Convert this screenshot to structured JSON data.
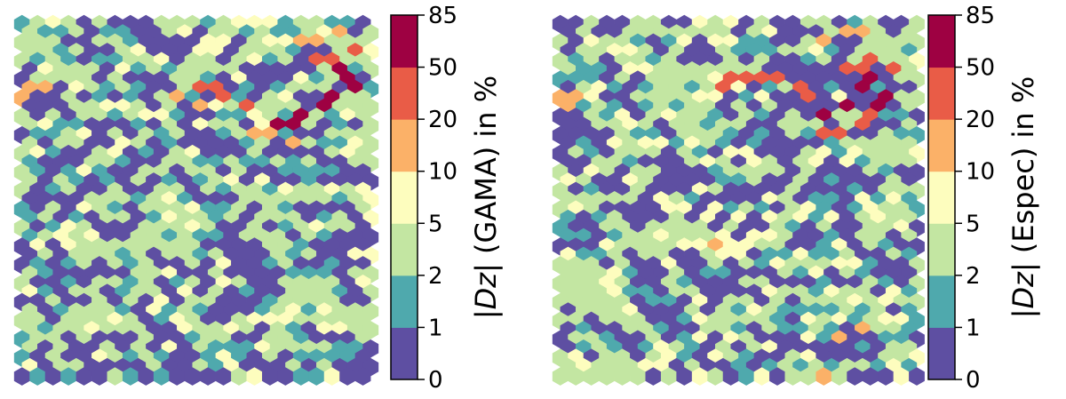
{
  "chart_data": [
    {
      "type": "heatmap",
      "subtype": "hexbin",
      "title": "",
      "xlabel": "",
      "ylabel": "",
      "grid": false,
      "axes_visible": false,
      "colorbar": {
        "label_parts": [
          "|",
          "Dz",
          "| (GAMA) in %"
        ],
        "boundaries": [
          0,
          1,
          2,
          5,
          10,
          20,
          50,
          85
        ],
        "tick_labels": [
          "0",
          "1",
          "2",
          "5",
          "10",
          "20",
          "50",
          "85"
        ],
        "colors": [
          "#5e4fa2",
          "#4fa9ad",
          "#c3e6a2",
          "#fdfdbe",
          "#fbb168",
          "#e95c47",
          "#9e0142"
        ],
        "placement": "right"
      },
      "features": [
        {
          "description": "high-value band",
          "cells": [
            [
              20,
              5
            ],
            [
              21,
              6
            ],
            [
              21,
              7
            ],
            [
              20,
              8
            ],
            [
              19,
              9
            ],
            [
              18,
              10
            ],
            [
              17,
              11
            ],
            [
              16,
              11
            ]
          ],
          "value": 85
        },
        {
          "description": "orange arc",
          "cells": [
            [
              11,
              7
            ],
            [
              12,
              7
            ],
            [
              13,
              8
            ],
            [
              14,
              9
            ],
            [
              19,
              4
            ],
            [
              20,
              4
            ],
            [
              21,
              3
            ]
          ],
          "value": 35
        },
        {
          "description": "light-orange patches",
          "cells": [
            [
              0,
              7
            ],
            [
              1,
              7
            ],
            [
              0,
              8
            ],
            [
              10,
              8
            ],
            [
              11,
              9
            ],
            [
              15,
              12
            ],
            [
              16,
              12
            ],
            [
              17,
              13
            ],
            [
              18,
              2
            ],
            [
              19,
              2
            ],
            [
              20,
              1
            ]
          ],
          "value": 15
        }
      ]
    },
    {
      "type": "heatmap",
      "subtype": "hexbin",
      "title": "",
      "xlabel": "",
      "ylabel": "",
      "grid": false,
      "axes_visible": false,
      "colorbar": {
        "label_parts": [
          "|",
          "Dz",
          "| (Espec) in %"
        ],
        "boundaries": [
          0,
          1,
          2,
          5,
          10,
          20,
          50,
          85
        ],
        "tick_labels": [
          "0",
          "1",
          "2",
          "5",
          "10",
          "20",
          "50",
          "85"
        ],
        "colors": [
          "#5e4fa2",
          "#4fa9ad",
          "#c3e6a2",
          "#fdfdbe",
          "#fbb168",
          "#e95c47",
          "#9e0142"
        ],
        "placement": "right"
      },
      "features": [
        {
          "description": "high-value band",
          "cells": [
            [
              19,
              7
            ],
            [
              20,
              6
            ],
            [
              18,
              9
            ],
            [
              17,
              10
            ],
            [
              20,
              9
            ],
            [
              21,
              8
            ]
          ],
          "value": 85
        },
        {
          "description": "orange arc",
          "cells": [
            [
              10,
              7
            ],
            [
              11,
              6
            ],
            [
              12,
              6
            ],
            [
              13,
              6
            ],
            [
              14,
              6
            ],
            [
              15,
              7
            ],
            [
              16,
              8
            ],
            [
              18,
              5
            ],
            [
              19,
              5
            ],
            [
              20,
              4
            ],
            [
              21,
              5
            ],
            [
              20,
              10
            ],
            [
              19,
              11
            ],
            [
              18,
              12
            ],
            [
              17,
              12
            ]
          ],
          "value": 35
        },
        {
          "description": "light-orange patches",
          "cells": [
            [
              0,
              8
            ],
            [
              1,
              8
            ],
            [
              0,
              9
            ],
            [
              17,
              2
            ],
            [
              18,
              1
            ],
            [
              19,
              1
            ],
            [
              10,
              24
            ],
            [
              18,
              34
            ],
            [
              19,
              33
            ],
            [
              18,
              39
            ],
            [
              17,
              38
            ]
          ],
          "value": 15
        }
      ]
    }
  ]
}
